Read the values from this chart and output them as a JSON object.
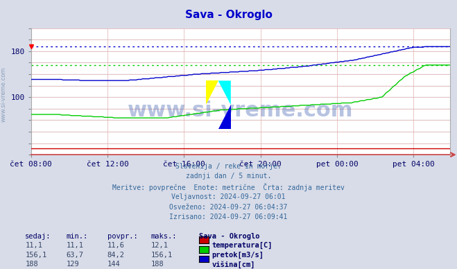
{
  "title": "Sava - Okroglo",
  "title_color": "#0000cc",
  "bg_color": "#d8dce8",
  "plot_bg_color": "#ffffff",
  "grid_color": "#c8c8d8",
  "vgrid_color": "#e08080",
  "xticklabels": [
    "čet 08:00",
    "čet 12:00",
    "čet 16:00",
    "čet 20:00",
    "pet 00:00",
    "pet 04:00"
  ],
  "xtick_positions": [
    0,
    48,
    96,
    144,
    192,
    240
  ],
  "ytick_labels": [
    "",
    "",
    "",
    "",
    "",
    "100",
    "",
    "",
    "",
    "180",
    "",
    ""
  ],
  "ytick_positions": [
    0,
    20,
    40,
    60,
    80,
    100,
    120,
    140,
    160,
    180,
    200,
    220
  ],
  "ylim": [
    0,
    220
  ],
  "xlim_max": 263,
  "temp_color": "#cc0000",
  "flow_color": "#00cc00",
  "height_color": "#0000cc",
  "n_points": 264,
  "height_max": 188,
  "flow_max": 156.1,
  "info_lines": [
    "Slovenija / reke in morje.",
    "zadnji dan / 5 minut.",
    "Meritve: povprečne  Enote: metrične  Črta: zadnja meritev",
    "Veljavnost: 2024-09-27 06:01",
    "Osveženo: 2024-09-27 06:04:37",
    "Izrisano: 2024-09-27 06:09:41"
  ],
  "table_headers": [
    "sedaj:",
    "min.:",
    "povpr.:",
    "maks.:",
    "Sava - Okroglo"
  ],
  "table_rows": [
    [
      "11,1",
      "11,1",
      "11,6",
      "12,1",
      "temperatura[C]",
      "#cc0000"
    ],
    [
      "156,1",
      "63,7",
      "84,2",
      "156,1",
      "pretok[m3/s]",
      "#00cc00"
    ],
    [
      "188",
      "129",
      "144",
      "188",
      "višina[cm]",
      "#0000cc"
    ]
  ],
  "left_label": "www.si-vreme.com",
  "left_label_color": "#6688aa",
  "tick_color": "#000066",
  "info_color": "#336699",
  "header_color": "#000066"
}
